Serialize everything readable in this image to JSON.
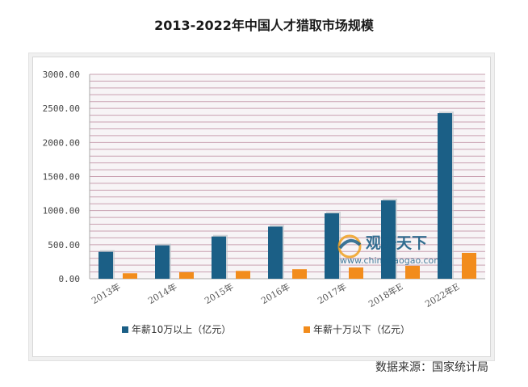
{
  "title": "2013-2022年中国人才猎取市场规模",
  "source": "数据来源：国家统计局",
  "watermark": {
    "brand": "观研天下",
    "url": "www.chinabaogao.com"
  },
  "colors": {
    "series1": "#1b5f86",
    "series2": "#f28c1c",
    "plot_bg": "#f7f4f6",
    "gridline": "#c9a0b0"
  },
  "chart_data": {
    "type": "bar",
    "categories": [
      "2013年",
      "2014年",
      "2015年",
      "2016年",
      "2017年",
      "2018年E",
      "2022年E"
    ],
    "series": [
      {
        "name": "年薪10万以上（亿元）",
        "values": [
          395,
          490,
          620,
          765,
          960,
          1150,
          2430
        ]
      },
      {
        "name": "年薪十万以下（亿元）",
        "values": [
          80,
          95,
          115,
          140,
          165,
          190,
          380
        ]
      }
    ],
    "ylim": [
      0,
      3000
    ],
    "yticks": [
      "0.00",
      "500.00",
      "1000.00",
      "1500.00",
      "2000.00",
      "2500.00",
      "3000.00"
    ],
    "grid": true,
    "legend_position": "bottom"
  }
}
